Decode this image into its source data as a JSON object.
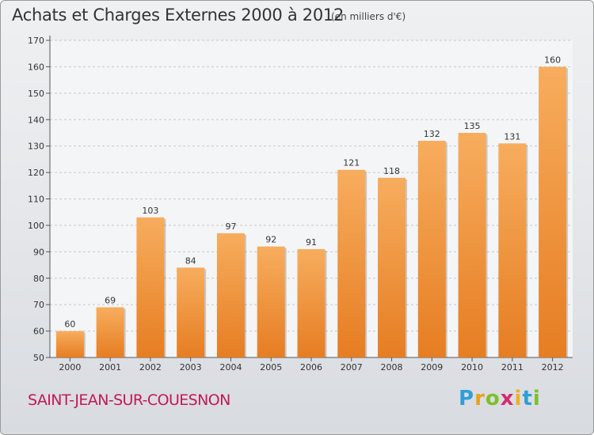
{
  "chart_data": {
    "type": "bar",
    "title": "Achats et Charges Externes 2000 à 2012",
    "subtitle": "(en milliers d'€)",
    "categories": [
      "2000",
      "2001",
      "2002",
      "2003",
      "2004",
      "2005",
      "2006",
      "2007",
      "2008",
      "2009",
      "2010",
      "2011",
      "2012"
    ],
    "values": [
      60,
      69,
      103,
      84,
      97,
      92,
      91,
      121,
      118,
      132,
      135,
      131,
      160
    ],
    "ylim": [
      50,
      170
    ],
    "yticks": [
      50,
      60,
      70,
      80,
      90,
      100,
      110,
      120,
      130,
      140,
      150,
      160,
      170
    ],
    "xlabel": "",
    "ylabel": "",
    "grid": "horizontal dashed",
    "bar_color": "#f0923a",
    "bar_color_light": "#f7ad5e",
    "bar_color_dark": "#e67d22"
  },
  "footer": {
    "location": "SAINT-JEAN-SUR-COUESNON",
    "location_color": "#c2185b",
    "logo_letters": [
      "P",
      "r",
      "o",
      "x",
      "i",
      "t",
      "i"
    ],
    "logo_colors": [
      "#2e9fd8",
      "#e8a21a",
      "#7fbf2a",
      "#d12c74",
      "#f2b01e",
      "#2e9fd8",
      "#7fbf2a"
    ]
  }
}
